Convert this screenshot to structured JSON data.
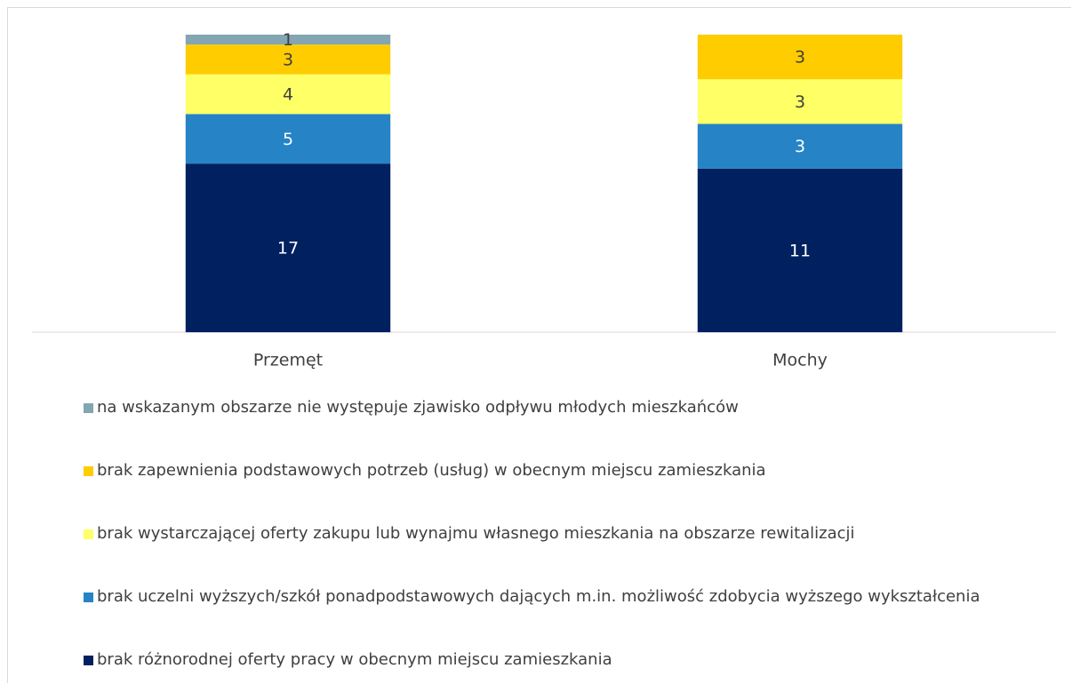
{
  "chart_data": {
    "type": "bar",
    "stacked": "percent",
    "categories": [
      "Przemęt",
      "Mochy"
    ],
    "series": [
      {
        "name": "brak różnorodnej oferty pracy w obecnym miejscu zamieszkania",
        "color": "#002060",
        "values": [
          17,
          11
        ]
      },
      {
        "name": "brak uczelni wyższych/szkół ponadpodstawowych dających m.in. możliwość zdobycia wyższego wykształcenia",
        "color": "#2683c6",
        "values": [
          5,
          3
        ]
      },
      {
        "name": "brak wystarczającej oferty zakupu lub wynajmu własnego mieszkania na obszarze rewitalizacji",
        "color": "#ffff66",
        "values": [
          4,
          3
        ]
      },
      {
        "name": "brak zapewnienia podstawowych potrzeb (usług) w obecnym miejscu zamieszkania",
        "color": "#ffcc00",
        "values": [
          3,
          3
        ]
      },
      {
        "name": "na wskazanym obszarze nie występuje zjawisko odpływu młodych mieszkańców",
        "color": "#84a5b2",
        "values": [
          1,
          null
        ]
      }
    ],
    "legend": "bottom"
  }
}
